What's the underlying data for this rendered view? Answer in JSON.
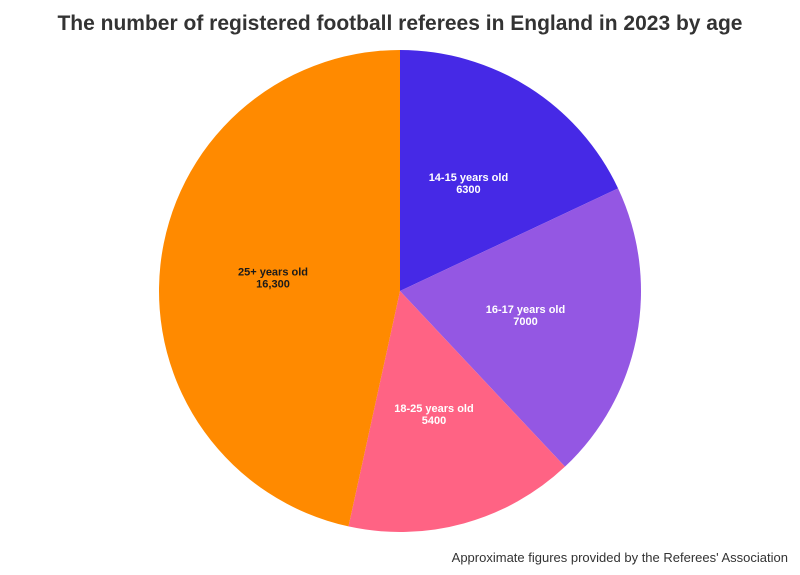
{
  "title": "The number of registered football referees in England in 2023 by age",
  "caption": "Approximate figures provided by the Referees' Association",
  "chart_data": {
    "type": "pie",
    "title": "The number of registered football referees in England in 2023 by age",
    "start": "12 o'clock",
    "direction": "clockwise",
    "slices": [
      {
        "label": "14-15 years old",
        "value": 6300,
        "value_label": "6300",
        "color": "#4629E6",
        "text_color": "#ffffff"
      },
      {
        "label": "16-17 years old",
        "value": 7000,
        "value_label": "7000",
        "color": "#9457E3",
        "text_color": "#ffffff"
      },
      {
        "label": "18-25 years old",
        "value": 5400,
        "value_label": "5400",
        "color": "#FF6384",
        "text_color": "#ffffff"
      },
      {
        "label": "25+ years old",
        "value": 16300,
        "value_label": "16,300",
        "color": "#FF8A00",
        "text_color": "#1a1a1a"
      }
    ]
  }
}
